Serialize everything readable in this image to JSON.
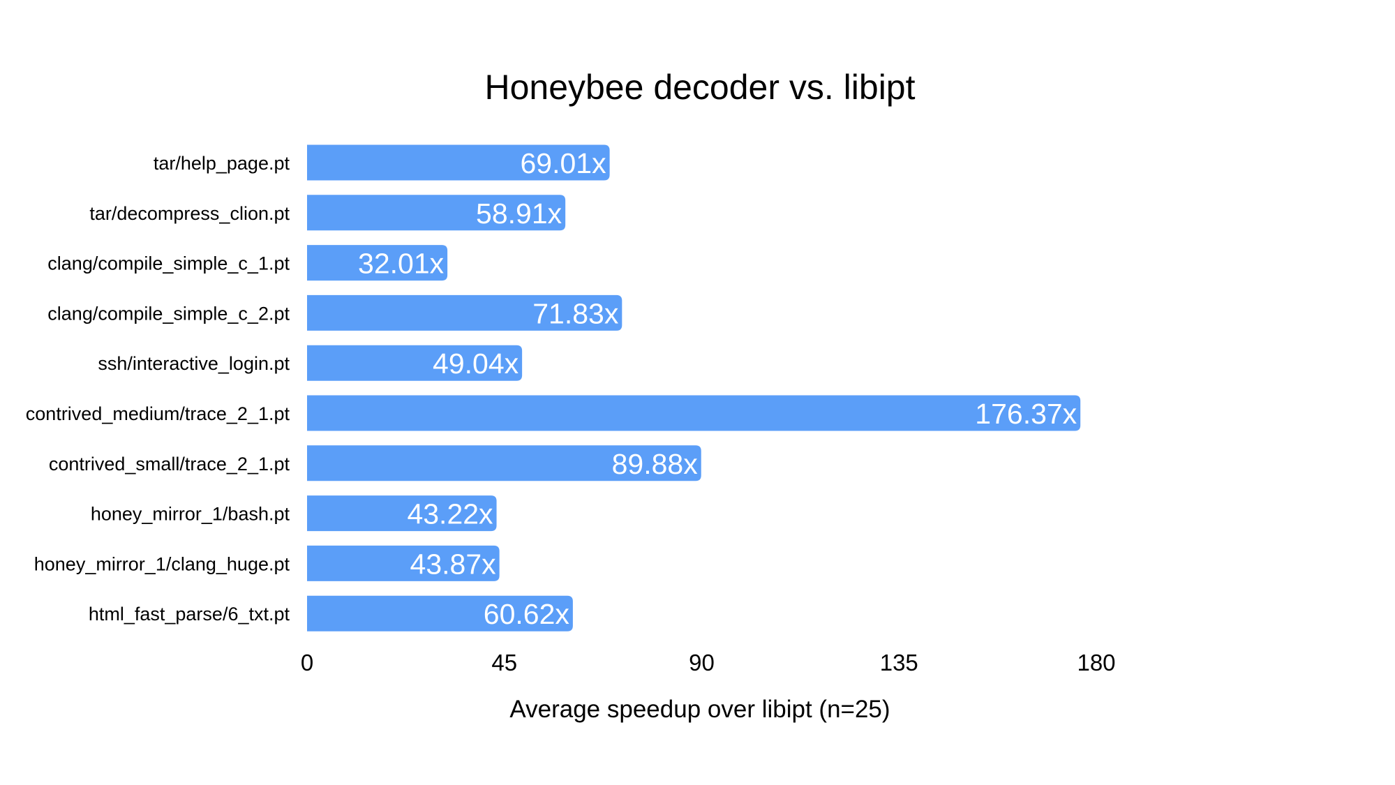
{
  "chart_data": {
    "type": "bar",
    "orientation": "horizontal",
    "title": "Honeybee decoder vs. libipt",
    "xlabel": "Average speedup over libipt (n=25)",
    "ylabel": "",
    "xlim": [
      0,
      180
    ],
    "xticks": [
      "0",
      "45",
      "90",
      "135",
      "180"
    ],
    "categories": [
      "tar/help_page.pt",
      "tar/decompress_clion.pt",
      "clang/compile_simple_c_1.pt",
      "clang/compile_simple_c_2.pt",
      "ssh/interactive_login.pt",
      "contrived_medium/trace_2_1.pt",
      "contrived_small/trace_2_1.pt",
      "honey_mirror_1/bash.pt",
      "honey_mirror_1/clang_huge.pt",
      "html_fast_parse/6_txt.pt"
    ],
    "values": [
      69.01,
      58.91,
      32.01,
      71.83,
      49.04,
      176.37,
      89.88,
      43.22,
      43.87,
      60.62
    ],
    "value_labels": [
      "69.01x",
      "58.91x",
      "32.01x",
      "71.83x",
      "49.04x",
      "176.37x",
      "89.88x",
      "43.22x",
      "43.87x",
      "60.62x"
    ],
    "bar_color": "#5b9ef8",
    "value_label_color": "#ffffff",
    "grid": false,
    "legend": "none"
  }
}
